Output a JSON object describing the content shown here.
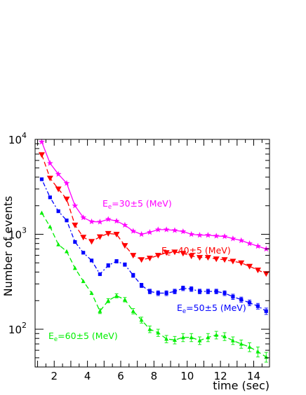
{
  "chart_data": {
    "type": "line",
    "xlabel": "time (sec)",
    "ylabel": "Number of events",
    "xlim": [
      0.85,
      14.95
    ],
    "ylim": [
      40,
      10000
    ],
    "yscale": "log",
    "x_ticks": [
      2,
      4,
      6,
      8,
      10,
      12,
      14
    ],
    "y_ticks": [
      {
        "value": 100,
        "base": "10",
        "exp": "2"
      },
      {
        "value": 1000,
        "base": "10",
        "exp": "3"
      },
      {
        "value": 10000,
        "base": "10",
        "exp": "4"
      }
    ],
    "grid": false,
    "x": [
      1.25,
      1.75,
      2.25,
      2.75,
      3.25,
      3.75,
      4.25,
      4.75,
      5.25,
      5.75,
      6.25,
      6.75,
      7.25,
      7.75,
      8.25,
      8.75,
      9.25,
      9.75,
      10.25,
      10.75,
      11.25,
      11.75,
      12.25,
      12.75,
      13.25,
      13.75,
      14.25,
      14.75
    ],
    "series": [
      {
        "name": "E_e=30±5 (MeV)",
        "label_main": "E",
        "label_sub": "e",
        "label_rest": "=30±5 (MeV)",
        "color": "#ff00ff",
        "marker": "star",
        "line": "solid",
        "values": [
          9400,
          5600,
          4300,
          3450,
          2000,
          1500,
          1360,
          1350,
          1440,
          1380,
          1250,
          1080,
          1000,
          1050,
          1120,
          1120,
          1100,
          1070,
          1000,
          980,
          980,
          960,
          950,
          900,
          860,
          800,
          750,
          700
        ]
      },
      {
        "name": "E_e=40±5 (MeV)",
        "label_main": "E",
        "label_sub": "e",
        "label_rest": "=40±5 (MeV)",
        "color": "#ff0000",
        "marker": "triangle-down",
        "line": "dashed",
        "values": [
          6900,
          3900,
          3000,
          2350,
          1250,
          930,
          840,
          940,
          1020,
          1000,
          760,
          600,
          540,
          560,
          600,
          640,
          650,
          630,
          590,
          570,
          570,
          550,
          540,
          520,
          500,
          460,
          420,
          385
        ]
      },
      {
        "name": "E_e=50±5 (MeV)",
        "label_main": "E",
        "label_sub": "e",
        "label_rest": "=50±5 (MeV)",
        "color": "#0000ff",
        "marker": "square",
        "line": "dash-dot",
        "values": [
          3800,
          2450,
          1750,
          1400,
          830,
          640,
          530,
          380,
          470,
          520,
          480,
          370,
          290,
          250,
          240,
          240,
          250,
          270,
          265,
          250,
          250,
          250,
          240,
          220,
          205,
          190,
          175,
          155
        ]
      },
      {
        "name": "E_e=60±5 (MeV)",
        "label_main": "E",
        "label_sub": "e",
        "label_rest": "=60±5 (MeV)",
        "color": "#00ee00",
        "marker": "triangle-up",
        "line": "dashed",
        "values": [
          1680,
          1200,
          780,
          660,
          440,
          320,
          240,
          155,
          200,
          225,
          205,
          155,
          125,
          100,
          92,
          79,
          77,
          82,
          82,
          76,
          82,
          87,
          84,
          76,
          70,
          65,
          58,
          51
        ]
      }
    ],
    "errors": [
      [
        0,
        0,
        0,
        0,
        0,
        0,
        0,
        0,
        0,
        0,
        0,
        0,
        0,
        0,
        0,
        0,
        0,
        0,
        0,
        0,
        0,
        0,
        0,
        0,
        0,
        0,
        0,
        0
      ],
      [
        0,
        0,
        0,
        0,
        0,
        0,
        0,
        0,
        0,
        0,
        0,
        0,
        0,
        0,
        0,
        0,
        0,
        0,
        0,
        0,
        0,
        0,
        0,
        0,
        0,
        0,
        0,
        0
      ],
      [
        0,
        0,
        0,
        0,
        0,
        0,
        0,
        0,
        20,
        22,
        20,
        18,
        15,
        14,
        14,
        14,
        14,
        15,
        15,
        14,
        14,
        14,
        14,
        14,
        13,
        13,
        12,
        12
      ],
      [
        0,
        0,
        0,
        0,
        0,
        0,
        0,
        9,
        10,
        11,
        11,
        10,
        9,
        8,
        8,
        7,
        7,
        8,
        8,
        7,
        8,
        8,
        8,
        7,
        7,
        7,
        7,
        6
      ]
    ]
  }
}
